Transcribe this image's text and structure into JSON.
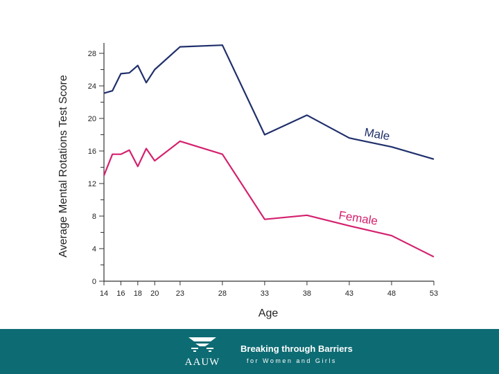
{
  "chart_data": {
    "type": "line",
    "title": "",
    "xlabel": "Age",
    "ylabel": "Average Mental Rotations Test Score",
    "x_ticks": [
      14,
      16,
      18,
      20,
      23,
      28,
      33,
      38,
      43,
      48,
      53
    ],
    "y_ticks": [
      0,
      4,
      8,
      12,
      16,
      20,
      24,
      28
    ],
    "xlim": [
      14,
      53
    ],
    "ylim": [
      0,
      28
    ],
    "series": [
      {
        "name": "Male",
        "color": "#1f2f6b",
        "x": [
          14,
          15,
          16,
          17,
          18,
          19,
          20,
          23,
          28,
          33,
          38,
          43,
          48,
          53
        ],
        "y": [
          23.1,
          23.4,
          25.5,
          25.6,
          26.5,
          24.4,
          26.0,
          28.8,
          29.0,
          18.0,
          20.4,
          17.6,
          16.5,
          15.0
        ]
      },
      {
        "name": "Female",
        "color": "#d4206e",
        "x": [
          14,
          15,
          16,
          17,
          18,
          19,
          20,
          23,
          28,
          33,
          38,
          43,
          48,
          53
        ],
        "y": [
          13.0,
          15.6,
          15.6,
          16.1,
          14.1,
          16.3,
          14.8,
          17.2,
          15.6,
          7.6,
          8.1,
          6.8,
          5.6,
          3.0
        ]
      }
    ]
  },
  "footer": {
    "org_name": "AAUW",
    "tagline_main": "Breaking through Barriers",
    "tagline_sub": "for Women and Girls",
    "background": "#0d6b73"
  }
}
